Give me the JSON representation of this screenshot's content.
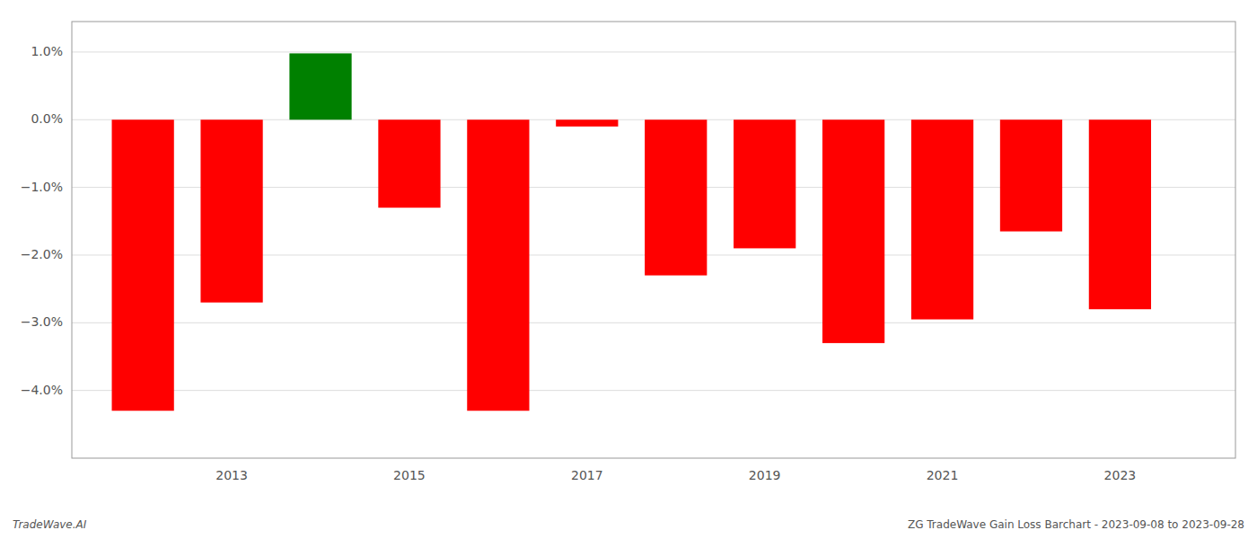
{
  "chart_data": {
    "type": "bar",
    "x": [
      2012,
      2013,
      2014,
      2015,
      2016,
      2017,
      2018,
      2019,
      2020,
      2021,
      2022,
      2023
    ],
    "values": [
      -0.043,
      -0.027,
      0.0098,
      -0.013,
      -0.043,
      -0.001,
      -0.023,
      -0.019,
      -0.033,
      -0.0295,
      -0.0165,
      -0.028
    ],
    "colors": [
      "#ff0000",
      "#ff0000",
      "#008000",
      "#ff0000",
      "#ff0000",
      "#ff0000",
      "#ff0000",
      "#ff0000",
      "#ff0000",
      "#ff0000",
      "#ff0000",
      "#ff0000"
    ],
    "xlim": [
      2011.2,
      2024.3
    ],
    "ylim": [
      -0.05,
      0.0145
    ],
    "xticks": [
      2013,
      2015,
      2017,
      2019,
      2021,
      2023
    ],
    "yticks": [
      {
        "value": -0.04,
        "label": "−4.0%"
      },
      {
        "value": -0.03,
        "label": "−3.0%"
      },
      {
        "value": -0.02,
        "label": "−2.0%"
      },
      {
        "value": -0.01,
        "label": "−1.0%"
      },
      {
        "value": 0.0,
        "label": "0.0%"
      },
      {
        "value": 0.01,
        "label": "1.0%"
      }
    ],
    "grid": true,
    "annotations": [
      "TradeWave.AI",
      "ZG TradeWave Gain Loss Barchart - 2023-09-08 to 2023-09-28"
    ]
  }
}
